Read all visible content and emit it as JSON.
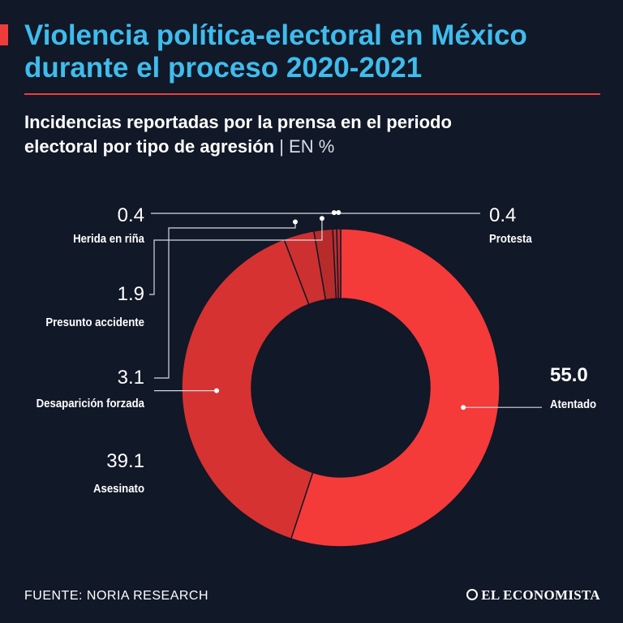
{
  "header": {
    "title_line1": "Violencia política-electoral en México",
    "title_line2": "durante el proceso 2020-2021",
    "subtitle_line1": "Incidencias reportadas por la prensa en el periodo",
    "subtitle_line2": "electoral por tipo de agresión",
    "subtitle_unit": "| EN %"
  },
  "footer": {
    "source": "FUENTE: NORIA RESEARCH",
    "brand": "EL ECONOMISTA"
  },
  "colors": {
    "background": "#111827",
    "title": "#3fbcec",
    "accent": "#ef3b3b"
  },
  "chart_data": {
    "type": "pie",
    "donut": true,
    "unit": "%",
    "title": "Incidencias reportadas por la prensa en el periodo electoral por tipo de agresión",
    "slices": [
      {
        "label": "Atentado",
        "value": 55.0,
        "value_text": "55.0",
        "color": "#f53a3a"
      },
      {
        "label": "Asesinato",
        "value": 39.1,
        "value_text": "39.1",
        "color": "#d63232"
      },
      {
        "label": "Desaparición forzada",
        "value": 3.1,
        "value_text": "3.1",
        "color": "#cc3030"
      },
      {
        "label": "Presunto accidente",
        "value": 1.9,
        "value_text": "1.9",
        "color": "#b82b2b"
      },
      {
        "label": "Herida en riña",
        "value": 0.4,
        "value_text": "0.4",
        "color": "#c42e2e"
      },
      {
        "label": "Protesta",
        "value": 0.4,
        "value_text": "0.4",
        "color": "#c42e2e"
      }
    ]
  }
}
